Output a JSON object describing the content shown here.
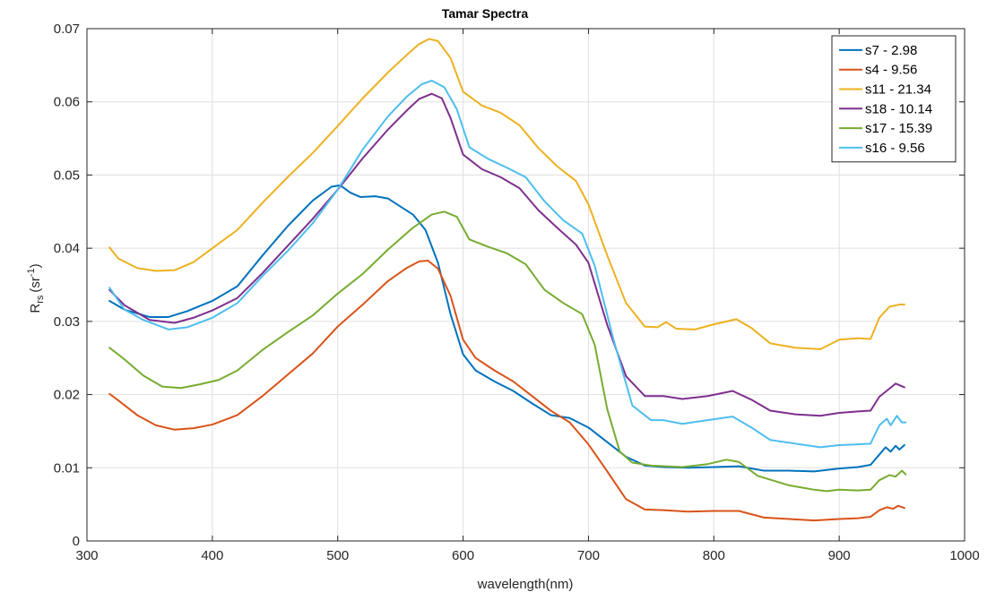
{
  "chart_data": {
    "type": "line",
    "title": "Tamar Spectra",
    "xlabel": "wavelength(nm)",
    "ylabel": {
      "main": "R",
      "sub": "rs",
      "unit_open": "(sr",
      "unit_sup": "-1",
      "unit_close": ")"
    },
    "xlim": [
      300,
      1000
    ],
    "ylim": [
      0,
      0.07
    ],
    "xticks": [
      300,
      400,
      500,
      600,
      700,
      800,
      900,
      1000
    ],
    "yticks": [
      0,
      0.01,
      0.02,
      0.03,
      0.04,
      0.05,
      0.06,
      0.07
    ],
    "xtick_labels": [
      "300",
      "400",
      "500",
      "600",
      "700",
      "800",
      "900",
      "1000"
    ],
    "ytick_labels": [
      "0",
      "0.01",
      "0.02",
      "0.03",
      "0.04",
      "0.05",
      "0.06",
      "0.07"
    ],
    "grid": true,
    "legend_position": "top-right",
    "series": [
      {
        "name": "s7 - 2.98",
        "color": "#0072bd",
        "points": [
          [
            318,
            0.0328
          ],
          [
            330,
            0.0316
          ],
          [
            350,
            0.0306
          ],
          [
            365,
            0.0306
          ],
          [
            380,
            0.0314
          ],
          [
            400,
            0.0328
          ],
          [
            420,
            0.0348
          ],
          [
            440,
            0.039
          ],
          [
            460,
            0.043
          ],
          [
            480,
            0.0465
          ],
          [
            495,
            0.0484
          ],
          [
            502,
            0.0486
          ],
          [
            510,
            0.0476
          ],
          [
            518,
            0.047
          ],
          [
            530,
            0.0471
          ],
          [
            540,
            0.0468
          ],
          [
            550,
            0.0457
          ],
          [
            560,
            0.0446
          ],
          [
            570,
            0.0425
          ],
          [
            580,
            0.038
          ],
          [
            590,
            0.031
          ],
          [
            600,
            0.0255
          ],
          [
            610,
            0.0233
          ],
          [
            625,
            0.0218
          ],
          [
            640,
            0.0205
          ],
          [
            655,
            0.0188
          ],
          [
            670,
            0.0172
          ],
          [
            685,
            0.0168
          ],
          [
            700,
            0.0155
          ],
          [
            715,
            0.0135
          ],
          [
            730,
            0.0115
          ],
          [
            745,
            0.0103
          ],
          [
            760,
            0.0101
          ],
          [
            780,
            0.01
          ],
          [
            800,
            0.0101
          ],
          [
            820,
            0.0102
          ],
          [
            840,
            0.0096
          ],
          [
            860,
            0.0096
          ],
          [
            880,
            0.0095
          ],
          [
            900,
            0.0099
          ],
          [
            915,
            0.0101
          ],
          [
            925,
            0.0104
          ],
          [
            932,
            0.0118
          ],
          [
            937,
            0.0128
          ],
          [
            941,
            0.0122
          ],
          [
            945,
            0.013
          ],
          [
            948,
            0.0125
          ],
          [
            952,
            0.0131
          ]
        ]
      },
      {
        "name": "s4 - 9.56",
        "color": "#d95319",
        "points": [
          [
            318,
            0.0201
          ],
          [
            325,
            0.0192
          ],
          [
            340,
            0.0172
          ],
          [
            355,
            0.0158
          ],
          [
            370,
            0.0152
          ],
          [
            385,
            0.0154
          ],
          [
            400,
            0.0159
          ],
          [
            420,
            0.0172
          ],
          [
            440,
            0.0198
          ],
          [
            460,
            0.0227
          ],
          [
            480,
            0.0256
          ],
          [
            500,
            0.0293
          ],
          [
            520,
            0.0323
          ],
          [
            540,
            0.0355
          ],
          [
            555,
            0.0373
          ],
          [
            565,
            0.0382
          ],
          [
            572,
            0.0383
          ],
          [
            580,
            0.0372
          ],
          [
            590,
            0.0335
          ],
          [
            600,
            0.0275
          ],
          [
            610,
            0.025
          ],
          [
            625,
            0.0233
          ],
          [
            640,
            0.0218
          ],
          [
            655,
            0.0198
          ],
          [
            670,
            0.0178
          ],
          [
            685,
            0.0162
          ],
          [
            700,
            0.0132
          ],
          [
            715,
            0.0095
          ],
          [
            730,
            0.0057
          ],
          [
            745,
            0.0043
          ],
          [
            760,
            0.0042
          ],
          [
            780,
            0.004
          ],
          [
            800,
            0.0041
          ],
          [
            820,
            0.0041
          ],
          [
            840,
            0.0032
          ],
          [
            860,
            0.003
          ],
          [
            880,
            0.0028
          ],
          [
            900,
            0.003
          ],
          [
            915,
            0.0031
          ],
          [
            925,
            0.0033
          ],
          [
            932,
            0.0042
          ],
          [
            938,
            0.0046
          ],
          [
            943,
            0.0044
          ],
          [
            947,
            0.0048
          ],
          [
            952,
            0.0045
          ]
        ]
      },
      {
        "name": "s11 - 21.34",
        "color": "#edb120",
        "points": [
          [
            318,
            0.0401
          ],
          [
            325,
            0.0386
          ],
          [
            340,
            0.0373
          ],
          [
            355,
            0.0369
          ],
          [
            370,
            0.037
          ],
          [
            385,
            0.0381
          ],
          [
            400,
            0.04
          ],
          [
            420,
            0.0425
          ],
          [
            440,
            0.0462
          ],
          [
            460,
            0.0497
          ],
          [
            480,
            0.053
          ],
          [
            500,
            0.0567
          ],
          [
            520,
            0.0605
          ],
          [
            540,
            0.064
          ],
          [
            555,
            0.0664
          ],
          [
            565,
            0.0679
          ],
          [
            573,
            0.0686
          ],
          [
            580,
            0.0683
          ],
          [
            590,
            0.066
          ],
          [
            600,
            0.0614
          ],
          [
            615,
            0.0595
          ],
          [
            630,
            0.0585
          ],
          [
            645,
            0.0568
          ],
          [
            660,
            0.0537
          ],
          [
            675,
            0.0512
          ],
          [
            690,
            0.0492
          ],
          [
            700,
            0.046
          ],
          [
            715,
            0.039
          ],
          [
            730,
            0.0325
          ],
          [
            745,
            0.0293
          ],
          [
            755,
            0.0292
          ],
          [
            762,
            0.0299
          ],
          [
            770,
            0.029
          ],
          [
            785,
            0.0289
          ],
          [
            800,
            0.0296
          ],
          [
            818,
            0.0303
          ],
          [
            830,
            0.0291
          ],
          [
            845,
            0.027
          ],
          [
            865,
            0.0264
          ],
          [
            885,
            0.0262
          ],
          [
            900,
            0.0275
          ],
          [
            915,
            0.0277
          ],
          [
            925,
            0.0276
          ],
          [
            932,
            0.0305
          ],
          [
            940,
            0.032
          ],
          [
            948,
            0.0323
          ],
          [
            952,
            0.0323
          ]
        ]
      },
      {
        "name": "s18 - 10.14",
        "color": "#7e2f8e",
        "points": [
          [
            318,
            0.0343
          ],
          [
            330,
            0.0322
          ],
          [
            350,
            0.0302
          ],
          [
            370,
            0.0298
          ],
          [
            385,
            0.0305
          ],
          [
            400,
            0.0315
          ],
          [
            420,
            0.0332
          ],
          [
            440,
            0.0366
          ],
          [
            460,
            0.0403
          ],
          [
            480,
            0.044
          ],
          [
            500,
            0.048
          ],
          [
            520,
            0.0523
          ],
          [
            540,
            0.0562
          ],
          [
            555,
            0.0588
          ],
          [
            565,
            0.0604
          ],
          [
            575,
            0.0611
          ],
          [
            583,
            0.0605
          ],
          [
            590,
            0.0578
          ],
          [
            600,
            0.0528
          ],
          [
            615,
            0.0508
          ],
          [
            630,
            0.0497
          ],
          [
            645,
            0.0482
          ],
          [
            660,
            0.0452
          ],
          [
            675,
            0.0428
          ],
          [
            690,
            0.0405
          ],
          [
            700,
            0.038
          ],
          [
            715,
            0.0295
          ],
          [
            730,
            0.0225
          ],
          [
            745,
            0.0198
          ],
          [
            760,
            0.0198
          ],
          [
            775,
            0.0194
          ],
          [
            795,
            0.0198
          ],
          [
            815,
            0.0205
          ],
          [
            830,
            0.0193
          ],
          [
            845,
            0.0178
          ],
          [
            865,
            0.0173
          ],
          [
            885,
            0.0171
          ],
          [
            900,
            0.0175
          ],
          [
            915,
            0.0177
          ],
          [
            925,
            0.0178
          ],
          [
            932,
            0.0197
          ],
          [
            940,
            0.0208
          ],
          [
            945,
            0.0215
          ],
          [
            952,
            0.021
          ]
        ]
      },
      {
        "name": "s17 - 15.39",
        "color": "#77ac30",
        "points": [
          [
            318,
            0.0264
          ],
          [
            330,
            0.0248
          ],
          [
            345,
            0.0226
          ],
          [
            360,
            0.0211
          ],
          [
            375,
            0.0209
          ],
          [
            390,
            0.0214
          ],
          [
            405,
            0.022
          ],
          [
            420,
            0.0233
          ],
          [
            440,
            0.0261
          ],
          [
            460,
            0.0285
          ],
          [
            480,
            0.0308
          ],
          [
            500,
            0.0338
          ],
          [
            520,
            0.0365
          ],
          [
            540,
            0.0398
          ],
          [
            560,
            0.0428
          ],
          [
            575,
            0.0446
          ],
          [
            585,
            0.045
          ],
          [
            595,
            0.0443
          ],
          [
            605,
            0.0412
          ],
          [
            620,
            0.0402
          ],
          [
            635,
            0.0393
          ],
          [
            650,
            0.0378
          ],
          [
            665,
            0.0343
          ],
          [
            680,
            0.0325
          ],
          [
            695,
            0.031
          ],
          [
            705,
            0.0268
          ],
          [
            715,
            0.018
          ],
          [
            725,
            0.0122
          ],
          [
            735,
            0.0107
          ],
          [
            750,
            0.0103
          ],
          [
            775,
            0.0101
          ],
          [
            795,
            0.0105
          ],
          [
            810,
            0.0111
          ],
          [
            820,
            0.0108
          ],
          [
            835,
            0.0089
          ],
          [
            860,
            0.0076
          ],
          [
            880,
            0.007
          ],
          [
            890,
            0.0068
          ],
          [
            900,
            0.007
          ],
          [
            915,
            0.0069
          ],
          [
            925,
            0.007
          ],
          [
            932,
            0.0083
          ],
          [
            940,
            0.009
          ],
          [
            945,
            0.0088
          ],
          [
            950,
            0.0096
          ],
          [
            953,
            0.0091
          ]
        ]
      },
      {
        "name": "s16 - 9.56",
        "color": "#4dbeee",
        "points": [
          [
            318,
            0.0346
          ],
          [
            330,
            0.0316
          ],
          [
            345,
            0.0302
          ],
          [
            365,
            0.0289
          ],
          [
            380,
            0.0292
          ],
          [
            400,
            0.0305
          ],
          [
            420,
            0.0325
          ],
          [
            440,
            0.0362
          ],
          [
            460,
            0.0396
          ],
          [
            480,
            0.0434
          ],
          [
            500,
            0.048
          ],
          [
            520,
            0.0535
          ],
          [
            540,
            0.058
          ],
          [
            555,
            0.0607
          ],
          [
            567,
            0.0624
          ],
          [
            575,
            0.0629
          ],
          [
            585,
            0.062
          ],
          [
            595,
            0.059
          ],
          [
            605,
            0.0538
          ],
          [
            620,
            0.0522
          ],
          [
            635,
            0.051
          ],
          [
            650,
            0.0497
          ],
          [
            665,
            0.0464
          ],
          [
            680,
            0.0438
          ],
          [
            695,
            0.042
          ],
          [
            705,
            0.0376
          ],
          [
            720,
            0.0275
          ],
          [
            735,
            0.0185
          ],
          [
            750,
            0.0165
          ],
          [
            760,
            0.0165
          ],
          [
            775,
            0.016
          ],
          [
            795,
            0.0165
          ],
          [
            815,
            0.017
          ],
          [
            830,
            0.0155
          ],
          [
            845,
            0.0138
          ],
          [
            865,
            0.0133
          ],
          [
            885,
            0.0128
          ],
          [
            900,
            0.0131
          ],
          [
            915,
            0.0132
          ],
          [
            925,
            0.0133
          ],
          [
            932,
            0.0158
          ],
          [
            938,
            0.0167
          ],
          [
            941,
            0.0158
          ],
          [
            946,
            0.0171
          ],
          [
            950,
            0.0162
          ],
          [
            953,
            0.0162
          ]
        ]
      }
    ]
  }
}
